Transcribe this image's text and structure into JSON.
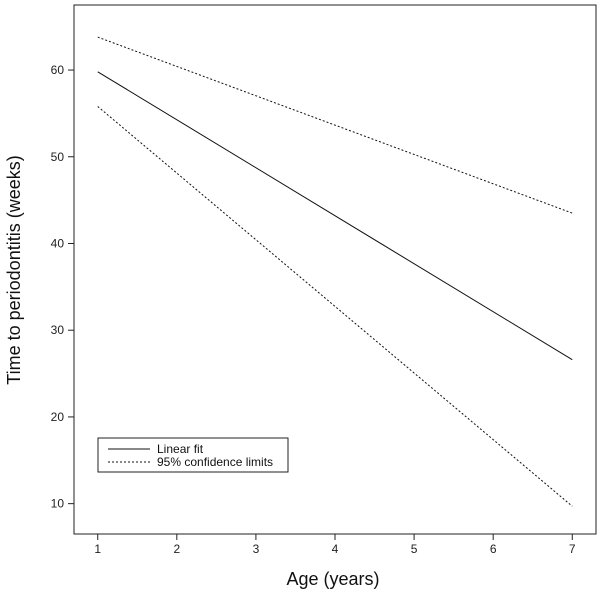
{
  "chart_data": {
    "type": "line",
    "title": "",
    "xlabel": "Age (years)",
    "ylabel": "Time to periodontitis (weeks)",
    "xlim": [
      0.7,
      7.3
    ],
    "ylim": [
      6.5,
      67.5
    ],
    "x_ticks": [
      "1",
      "2",
      "3",
      "4",
      "5",
      "6",
      "7"
    ],
    "y_ticks": [
      "10",
      "20",
      "30",
      "40",
      "50",
      "60"
    ],
    "grid": false,
    "legend_position": "bottom-left",
    "series": [
      {
        "name": "Linear fit",
        "style": "solid",
        "color": "#111111",
        "x": [
          1,
          7
        ],
        "y": [
          59.8,
          26.6
        ]
      },
      {
        "name": "95% confidence limits",
        "style": "dotted",
        "color": "#111111",
        "x": [
          1,
          7
        ],
        "y": [
          63.8,
          43.5
        ]
      },
      {
        "style": "dotted",
        "color": "#111111",
        "x": [
          1,
          7
        ],
        "y": [
          55.8,
          9.7
        ]
      }
    ],
    "legend": [
      "Linear fit",
      "95% confidence limits"
    ]
  }
}
